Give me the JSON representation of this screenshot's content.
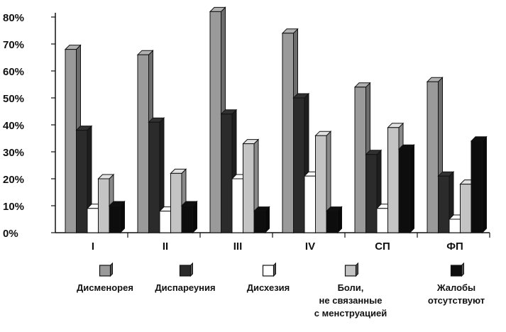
{
  "chart_data": {
    "type": "bar",
    "style": "3d-clustered",
    "categories": [
      "I",
      "II",
      "III",
      "IV",
      "СП",
      "ФП"
    ],
    "series": [
      {
        "name": "Дисменорея",
        "color": "#9a9a9a",
        "values": [
          68,
          66,
          82,
          74,
          54,
          56
        ]
      },
      {
        "name": "Диспареуния",
        "color": "#2b2b2b",
        "values": [
          38,
          41,
          44,
          50,
          29,
          21
        ]
      },
      {
        "name": "Дисхезия",
        "color": "#ffffff",
        "values": [
          9,
          8,
          20,
          21,
          9,
          5
        ]
      },
      {
        "name": "Боли, не связанные с менструацией",
        "color": "#c4c4c4",
        "values": [
          20,
          22,
          33,
          36,
          39,
          18
        ]
      },
      {
        "name": "Жалобы отсутствуют",
        "color": "#0d0d0d",
        "values": [
          10,
          10,
          8,
          8,
          31,
          34
        ]
      }
    ],
    "y_ticks": [
      "0%",
      "10%",
      "20%",
      "30%",
      "40%",
      "50%",
      "60%",
      "70%",
      "80%"
    ],
    "ylim": [
      0,
      80
    ],
    "legend": {
      "placement": "bottom",
      "entries": [
        {
          "lines": [
            "Дисменорея"
          ]
        },
        {
          "lines": [
            "Диспареуния"
          ]
        },
        {
          "lines": [
            "Дисхезия"
          ]
        },
        {
          "lines": [
            "Боли,",
            "не связанные",
            "с менструацией"
          ]
        },
        {
          "lines": [
            "Жалобы",
            "отсутствуют"
          ]
        }
      ]
    },
    "grid": false
  }
}
